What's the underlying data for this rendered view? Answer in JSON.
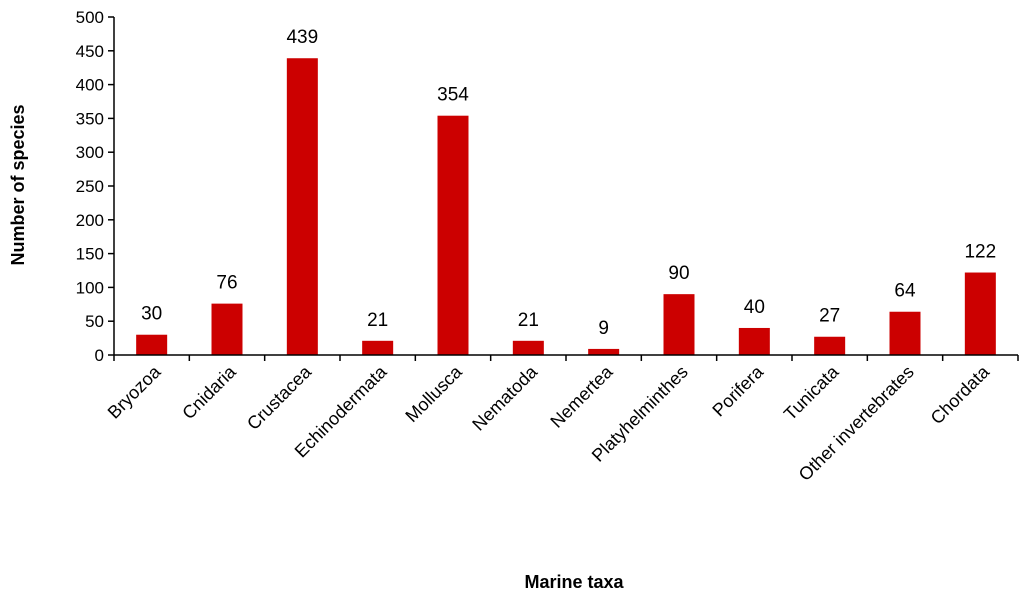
{
  "chart_data": {
    "type": "bar",
    "title": "",
    "xlabel": "Marine taxa",
    "ylabel": "Number of species",
    "categories": [
      "Bryozoa",
      "Cnidaria",
      "Crustacea",
      "Echinodermata",
      "Mollusca",
      "Nematoda",
      "Nemertea",
      "Platyhelminthes",
      "Porifera",
      "Tunicata",
      "Other invertebrates",
      "Chordata"
    ],
    "values": [
      30,
      76,
      439,
      21,
      354,
      21,
      9,
      90,
      40,
      27,
      64,
      122
    ],
    "ylim": [
      0,
      500
    ],
    "yticks": [
      0,
      50,
      100,
      150,
      200,
      250,
      300,
      350,
      400,
      450,
      500
    ],
    "grid": false,
    "legend": "none",
    "bar_color": "#cc0000",
    "data_labels": true
  }
}
